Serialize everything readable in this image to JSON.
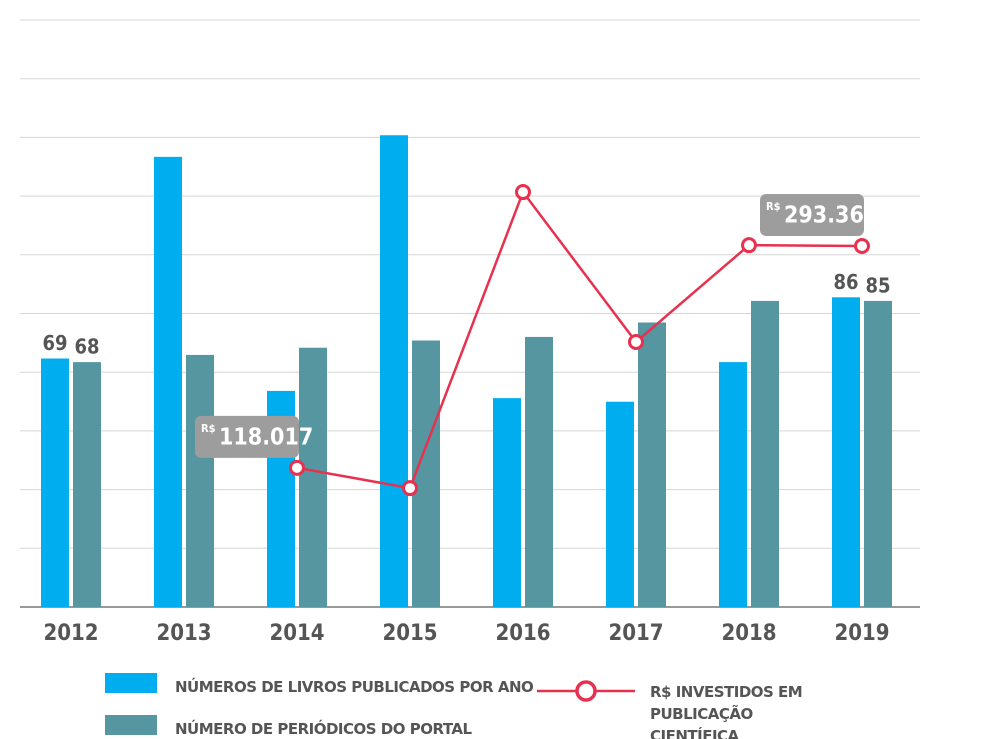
{
  "chart_data": {
    "type": "bar",
    "categories": [
      "2012",
      "2013",
      "2014",
      "2015",
      "2016",
      "2017",
      "2018",
      "2019"
    ],
    "series": [
      {
        "name": "NÚMEROS DE LIVROS PUBLICADOS POR ANO",
        "color": "#00aeef",
        "type": "bar",
        "values": [
          69,
          125,
          60,
          131,
          58,
          57,
          68,
          86
        ],
        "value_labels": [
          "69",
          null,
          null,
          null,
          null,
          null,
          null,
          "86"
        ]
      },
      {
        "name": "NÚMERO DE PERIÓDICOS DO PORTAL",
        "color": "#5596a1",
        "type": "bar",
        "values": [
          68,
          70,
          72,
          74,
          75,
          79,
          85,
          85
        ],
        "value_labels": [
          "68",
          null,
          null,
          null,
          null,
          null,
          null,
          "85"
        ]
      },
      {
        "name": "R$ INVESTIDOS EM PUBLICAÇÃO CIENTÍFICA",
        "color": "#e8304f",
        "type": "line",
        "axis": "y2",
        "values": [
          null,
          null,
          118017,
          102000,
          336000,
          217500,
          294000,
          293368
        ],
        "value_labels": [
          null,
          null,
          "118.017",
          null,
          null,
          null,
          null,
          "293.368"
        ],
        "value_prefix": "R$"
      }
    ],
    "ylim": [
      0,
      163
    ],
    "yticks": [
      0,
      16.3,
      32.6,
      48.9,
      65.2,
      81.5,
      97.8,
      114.1,
      130.4,
      146.7,
      163
    ],
    "y2lim": [
      8000,
      472000
    ],
    "grid": true
  }
}
